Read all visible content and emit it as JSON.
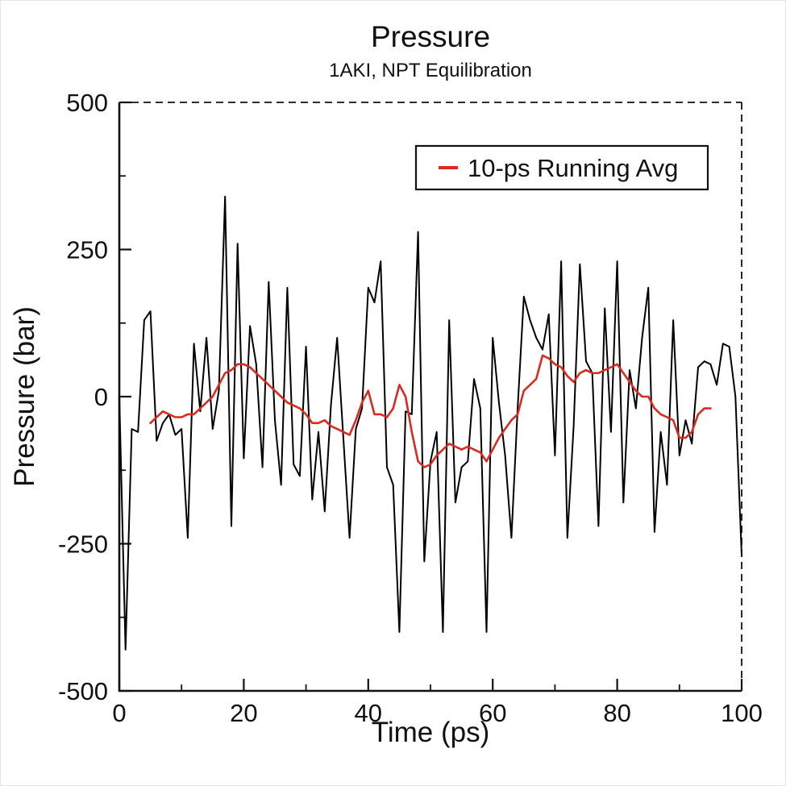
{
  "figure": {
    "background": "#ffffff",
    "frame_color": "#111111",
    "edge_border_color": "#e4e4e4"
  },
  "chart_data": {
    "type": "line",
    "title": "Pressure",
    "subtitle": "1AKI, NPT Equilibration",
    "xlabel": "Time (ps)",
    "ylabel": "Pressure (bar)",
    "xlim": [
      0,
      100
    ],
    "ylim": [
      -500,
      500
    ],
    "xticks": [
      0,
      20,
      40,
      60,
      80,
      100
    ],
    "yticks": [
      500,
      250,
      0,
      -250,
      -500
    ],
    "x_minor_ticks": [
      10,
      30,
      50,
      70,
      90
    ],
    "y_minor_ticks": [
      375,
      125,
      -125,
      -375
    ],
    "grid": false,
    "legend": {
      "position": "top-right",
      "entries": [
        {
          "label": "10-ps Running Avg",
          "color": "#d92b1f"
        }
      ]
    },
    "series": [
      {
        "name": "Pressure",
        "color": "#000000",
        "width": 2,
        "x": [
          0,
          1,
          2,
          3,
          4,
          5,
          6,
          7,
          8,
          9,
          10,
          11,
          12,
          13,
          14,
          15,
          16,
          17,
          18,
          19,
          20,
          21,
          22,
          23,
          24,
          25,
          26,
          27,
          28,
          29,
          30,
          31,
          32,
          33,
          34,
          35,
          36,
          37,
          38,
          39,
          40,
          41,
          42,
          43,
          44,
          45,
          46,
          47,
          48,
          49,
          50,
          51,
          52,
          53,
          54,
          55,
          56,
          57,
          58,
          59,
          60,
          61,
          62,
          63,
          64,
          65,
          66,
          67,
          68,
          69,
          70,
          71,
          72,
          73,
          74,
          75,
          76,
          77,
          78,
          79,
          80,
          81,
          82,
          83,
          84,
          85,
          86,
          87,
          88,
          89,
          90,
          91,
          92,
          93,
          94,
          95,
          96,
          97,
          98,
          99,
          100
        ],
        "y": [
          0,
          -430,
          -55,
          -60,
          130,
          145,
          -75,
          -45,
          -30,
          -65,
          -55,
          -240,
          90,
          -25,
          100,
          -55,
          10,
          340,
          -220,
          260,
          -105,
          120,
          55,
          -120,
          195,
          -40,
          -150,
          185,
          -115,
          -135,
          85,
          -175,
          -60,
          -195,
          -15,
          100,
          -70,
          -240,
          -55,
          -20,
          185,
          160,
          230,
          -120,
          -150,
          -400,
          -25,
          -30,
          280,
          -280,
          -110,
          -60,
          -400,
          130,
          -180,
          -120,
          -110,
          30,
          -20,
          -400,
          100,
          -10,
          -100,
          -240,
          -20,
          170,
          130,
          100,
          80,
          140,
          -100,
          230,
          -240,
          -50,
          225,
          60,
          40,
          -220,
          150,
          -60,
          230,
          -180,
          45,
          -20,
          100,
          185,
          -230,
          -60,
          -150,
          130,
          -100,
          -40,
          -80,
          50,
          60,
          55,
          20,
          90,
          85,
          0,
          -270
        ]
      },
      {
        "name": "10-ps Running Avg",
        "color": "#d92b1f",
        "width": 2.6,
        "x": [
          5,
          6,
          7,
          8,
          9,
          10,
          11,
          12,
          13,
          14,
          15,
          16,
          17,
          18,
          19,
          20,
          21,
          22,
          23,
          24,
          25,
          26,
          27,
          28,
          29,
          30,
          31,
          32,
          33,
          34,
          35,
          36,
          37,
          38,
          39,
          40,
          41,
          42,
          43,
          44,
          45,
          46,
          47,
          48,
          49,
          50,
          51,
          52,
          53,
          54,
          55,
          56,
          57,
          58,
          59,
          60,
          61,
          62,
          63,
          64,
          65,
          66,
          67,
          68,
          69,
          70,
          71,
          72,
          73,
          74,
          75,
          76,
          77,
          78,
          79,
          80,
          81,
          82,
          83,
          84,
          85,
          86,
          87,
          88,
          89,
          90,
          91,
          92,
          93,
          94,
          95
        ],
        "y": [
          -45,
          -35,
          -25,
          -30,
          -35,
          -35,
          -30,
          -30,
          -20,
          -10,
          0,
          20,
          40,
          45,
          55,
          55,
          50,
          40,
          30,
          20,
          10,
          0,
          -10,
          -15,
          -20,
          -30,
          -45,
          -45,
          -40,
          -50,
          -55,
          -60,
          -65,
          -40,
          -10,
          10,
          -30,
          -30,
          -35,
          -20,
          20,
          0,
          -60,
          -110,
          -120,
          -115,
          -100,
          -90,
          -80,
          -85,
          -90,
          -85,
          -90,
          -95,
          -110,
          -90,
          -70,
          -55,
          -40,
          -30,
          10,
          20,
          30,
          70,
          65,
          55,
          50,
          35,
          25,
          40,
          45,
          40,
          40,
          45,
          50,
          55,
          40,
          25,
          10,
          0,
          0,
          -20,
          -30,
          -35,
          -40,
          -70,
          -70,
          -60,
          -30,
          -20,
          -20
        ]
      }
    ]
  }
}
